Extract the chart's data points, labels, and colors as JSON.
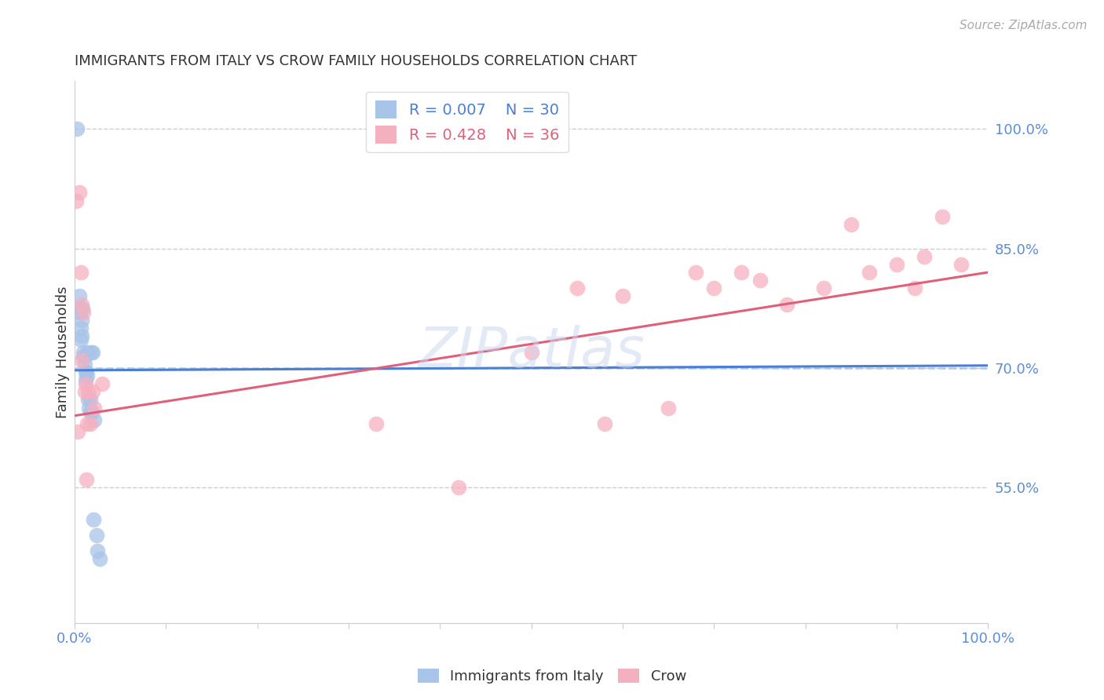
{
  "title": "IMMIGRANTS FROM ITALY VS CROW FAMILY HOUSEHOLDS CORRELATION CHART",
  "source": "Source: ZipAtlas.com",
  "ylabel": "Family Households",
  "ytick_labels": [
    "100.0%",
    "85.0%",
    "70.0%",
    "55.0%"
  ],
  "ytick_values": [
    1.0,
    0.85,
    0.7,
    0.55
  ],
  "xlim": [
    0.0,
    1.0
  ],
  "ylim": [
    0.38,
    1.06
  ],
  "legend_r1": "R = 0.007",
  "legend_n1": "N = 30",
  "legend_r2": "R = 0.428",
  "legend_n2": "N = 36",
  "color_blue": "#a8c4e8",
  "color_pink": "#f5b0c0",
  "color_blue_line": "#4a7fd4",
  "color_pink_line": "#e0607a",
  "color_dashed": "#a8c4e8",
  "axis_label_color": "#5b8dd9",
  "blue_points_x": [
    0.003,
    0.005,
    0.005,
    0.006,
    0.007,
    0.007,
    0.008,
    0.008,
    0.009,
    0.01,
    0.01,
    0.011,
    0.011,
    0.012,
    0.012,
    0.013,
    0.014,
    0.015,
    0.015,
    0.016,
    0.017,
    0.017,
    0.018,
    0.019,
    0.02,
    0.021,
    0.022,
    0.024,
    0.025,
    0.028
  ],
  "blue_points_y": [
    1.0,
    0.79,
    0.775,
    0.77,
    0.75,
    0.735,
    0.76,
    0.74,
    0.775,
    0.72,
    0.715,
    0.715,
    0.705,
    0.695,
    0.685,
    0.695,
    0.69,
    0.72,
    0.66,
    0.65,
    0.66,
    0.645,
    0.72,
    0.645,
    0.72,
    0.51,
    0.635,
    0.49,
    0.47,
    0.46
  ],
  "pink_points_x": [
    0.002,
    0.004,
    0.005,
    0.007,
    0.008,
    0.008,
    0.01,
    0.011,
    0.012,
    0.013,
    0.014,
    0.015,
    0.017,
    0.02,
    0.022,
    0.03,
    0.33,
    0.42,
    0.5,
    0.55,
    0.58,
    0.6,
    0.65,
    0.68,
    0.7,
    0.73,
    0.75,
    0.78,
    0.82,
    0.85,
    0.87,
    0.9,
    0.92,
    0.93,
    0.95,
    0.97
  ],
  "pink_points_y": [
    0.91,
    0.62,
    0.92,
    0.82,
    0.78,
    0.71,
    0.77,
    0.67,
    0.68,
    0.56,
    0.63,
    0.67,
    0.63,
    0.67,
    0.65,
    0.68,
    0.63,
    0.55,
    0.72,
    0.8,
    0.63,
    0.79,
    0.65,
    0.82,
    0.8,
    0.82,
    0.81,
    0.78,
    0.8,
    0.88,
    0.82,
    0.83,
    0.8,
    0.84,
    0.89,
    0.83
  ],
  "blue_line_x": [
    0.0,
    1.0
  ],
  "blue_line_y": [
    0.697,
    0.703
  ],
  "pink_line_x": [
    0.0,
    1.0
  ],
  "pink_line_y": [
    0.64,
    0.82
  ],
  "dashed_line_y": 0.7
}
